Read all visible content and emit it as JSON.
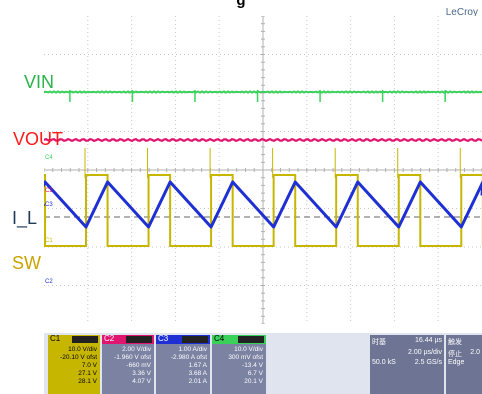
{
  "title": "g",
  "brand": "LeCroy",
  "channel_labels": {
    "vin": "VIN",
    "vout": "VOUT",
    "il": "I_L",
    "sw": "SW"
  },
  "label_colors": {
    "vin": "#2bb44a",
    "vout": "#ff1a1a",
    "il": "#1f3a5a",
    "sw": "#c9a400"
  },
  "trace_colors": {
    "c1": "#c7b600",
    "c2": "#e0156f",
    "c3": "#1e2fd4",
    "c4": "#3ad15a"
  },
  "marker_labels": {
    "c4": "C4",
    "c2": "C2",
    "c3": "C3",
    "c1": "C1",
    "cx": "C2"
  },
  "channels": [
    {
      "num": "C1",
      "color": "#c7b600",
      "lines": [
        "10.0 V/div",
        "-20.10 V ofst",
        "7.0 V",
        "27.1 V",
        "28.1 V"
      ]
    },
    {
      "num": "C2",
      "color": "#e0156f",
      "lines": [
        "2.00 V/div",
        "-1.960 V ofst",
        "-660 mV",
        "3.36 V",
        "4.07 V"
      ]
    },
    {
      "num": "C3",
      "color": "#1e2fd4",
      "lines": [
        "1.00 A/div",
        "-2.980 A ofst",
        "1.67 A",
        "3.68 A",
        "2.01 A"
      ]
    },
    {
      "num": "C4",
      "color": "#3ad15a",
      "lines": [
        "10.0 V/div",
        "300 mV ofst",
        "-13.4 V",
        "6.7 V",
        "20.1 V"
      ]
    }
  ],
  "timebase": {
    "title1": "时基",
    "value1": "16.44 µs",
    "title2": "触发",
    "value2": "2.0",
    "rate": "50.0 kS",
    "sample": "2.5 GS/s",
    "div": "2.00 µs/div",
    "mode": "停止",
    "type": "Edge"
  },
  "waveform": {
    "period_us": 2.1,
    "inductor_peak_div": 1.0,
    "inductor_valley_div": -0.3,
    "sw_high_div": 1.0
  }
}
